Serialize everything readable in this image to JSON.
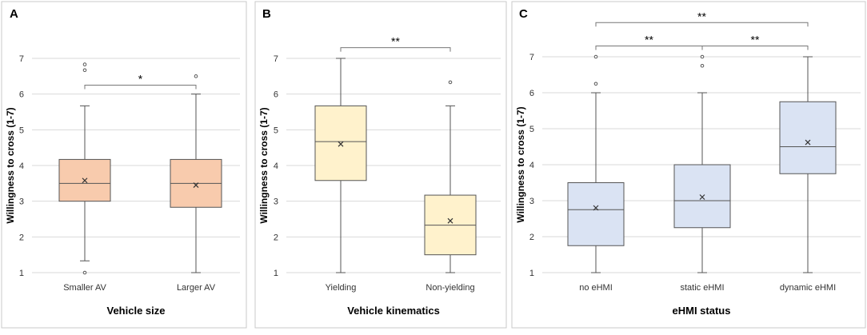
{
  "chart_data": [
    {
      "type": "box",
      "panel_label": "A",
      "xlabel": "Vehicle size",
      "ylabel": "Willingness to cross (1-7)",
      "ylim": [
        1,
        7
      ],
      "yticks": [
        "1",
        "2",
        "3",
        "4",
        "5",
        "6",
        "7"
      ],
      "grid": true,
      "box_color": "#F8CBAD",
      "categories": [
        "Smaller AV",
        "Larger AV"
      ],
      "boxes": [
        {
          "min": 1.33,
          "q1": 3.0,
          "median": 3.5,
          "q3": 4.17,
          "max": 5.67,
          "mean": 3.58,
          "outliers": [
            1.0,
            6.67,
            6.83
          ]
        },
        {
          "min": 1.0,
          "q1": 2.83,
          "median": 3.5,
          "q3": 4.17,
          "max": 6.0,
          "mean": 3.45,
          "outliers": [
            6.5
          ]
        }
      ],
      "significance": [
        {
          "from": 0,
          "to": 1,
          "label": "*",
          "y": 6.25
        }
      ]
    },
    {
      "type": "box",
      "panel_label": "B",
      "xlabel": "Vehicle kinematics",
      "ylabel": "Willingness to cross (1-7)",
      "ylim": [
        1,
        7
      ],
      "yticks": [
        "1",
        "2",
        "3",
        "4",
        "5",
        "6",
        "7"
      ],
      "grid": true,
      "box_color": "#FFF2CC",
      "categories": [
        "Yielding",
        "Non-yielding"
      ],
      "boxes": [
        {
          "min": 1.0,
          "q1": 3.58,
          "median": 4.67,
          "q3": 5.67,
          "max": 7.0,
          "mean": 4.6,
          "outliers": []
        },
        {
          "min": 1.0,
          "q1": 1.5,
          "median": 2.33,
          "q3": 3.17,
          "max": 5.67,
          "mean": 2.45,
          "outliers": [
            6.33
          ]
        }
      ],
      "significance": [
        {
          "from": 0,
          "to": 1,
          "label": "**",
          "y": 7.3
        }
      ]
    },
    {
      "type": "box",
      "panel_label": "C",
      "xlabel": "eHMI status",
      "ylabel": "Willingness to cross (1-7)",
      "ylim": [
        1,
        7
      ],
      "yticks": [
        "1",
        "2",
        "3",
        "4",
        "5",
        "6",
        "7"
      ],
      "grid": true,
      "box_color": "#DAE3F3",
      "categories": [
        "no eHMI",
        "static eHMI",
        "dynamic eHMI"
      ],
      "boxes": [
        {
          "min": 1.0,
          "q1": 1.75,
          "median": 2.75,
          "q3": 3.5,
          "max": 6.0,
          "mean": 2.8,
          "outliers": [
            6.25,
            7.0
          ]
        },
        {
          "min": 1.0,
          "q1": 2.25,
          "median": 3.0,
          "q3": 4.0,
          "max": 6.0,
          "mean": 3.1,
          "outliers": [
            6.75,
            7.0
          ]
        },
        {
          "min": 1.0,
          "q1": 3.75,
          "median": 4.5,
          "q3": 5.75,
          "max": 7.0,
          "mean": 4.62,
          "outliers": []
        }
      ],
      "significance": [
        {
          "from": 0,
          "to": 1,
          "label": "**",
          "y": 7.3
        },
        {
          "from": 1,
          "to": 2,
          "label": "**",
          "y": 7.3
        },
        {
          "from": 0,
          "to": 2,
          "label": "**",
          "y": 7.95
        }
      ]
    }
  ]
}
